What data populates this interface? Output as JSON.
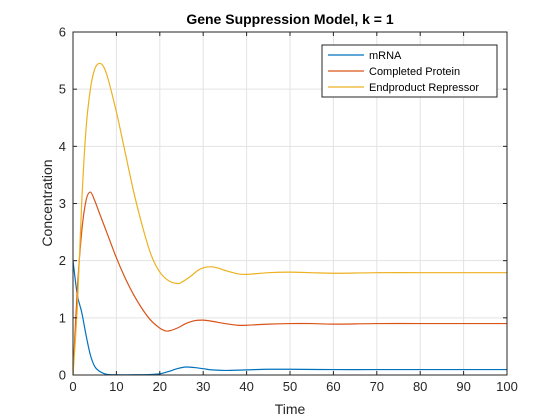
{
  "chart_data": {
    "type": "line",
    "title": "Gene Suppression Model, k = 1",
    "xlabel": "Time",
    "ylabel": "Concentration",
    "xlim": [
      0,
      100
    ],
    "ylim": [
      0,
      6
    ],
    "xticks": [
      "0",
      "10",
      "20",
      "30",
      "40",
      "50",
      "60",
      "70",
      "80",
      "90",
      "100"
    ],
    "yticks": [
      "0",
      "1",
      "2",
      "3",
      "4",
      "5",
      "6"
    ],
    "grid": true,
    "legend_position": "top-right",
    "series": [
      {
        "name": "mRNA",
        "color": "#0072BD",
        "x": [
          0,
          1,
          2,
          3,
          4,
          5,
          6,
          7,
          8,
          10,
          12,
          15,
          18,
          20,
          22,
          24,
          26,
          28,
          30,
          32,
          35,
          40,
          45,
          50,
          60,
          70,
          80,
          90,
          100
        ],
        "y": [
          2.0,
          1.4,
          1.1,
          0.7,
          0.35,
          0.15,
          0.07,
          0.03,
          0.01,
          0.005,
          0.003,
          0.005,
          0.01,
          0.02,
          0.06,
          0.11,
          0.14,
          0.13,
          0.11,
          0.09,
          0.08,
          0.09,
          0.1,
          0.1,
          0.095,
          0.095,
          0.095,
          0.095,
          0.095
        ]
      },
      {
        "name": "Completed Protein",
        "color": "#D95319",
        "x": [
          0,
          1,
          2,
          3,
          4,
          5,
          6,
          8,
          10,
          12,
          14,
          16,
          18,
          20,
          21,
          22,
          24,
          26,
          28,
          30,
          32,
          35,
          38,
          40,
          45,
          50,
          55,
          60,
          70,
          80,
          90,
          100
        ],
        "y": [
          0,
          1.5,
          2.5,
          3.05,
          3.2,
          3.05,
          2.85,
          2.45,
          2.05,
          1.7,
          1.4,
          1.15,
          0.95,
          0.82,
          0.78,
          0.77,
          0.82,
          0.9,
          0.95,
          0.96,
          0.94,
          0.9,
          0.87,
          0.87,
          0.89,
          0.9,
          0.9,
          0.89,
          0.9,
          0.9,
          0.9,
          0.9
        ]
      },
      {
        "name": "Endproduct Repressor",
        "color": "#EDB120",
        "x": [
          0,
          1,
          2,
          3,
          4,
          5,
          6,
          7,
          8,
          10,
          12,
          14,
          16,
          18,
          20,
          22,
          24,
          25,
          27,
          29,
          31,
          33,
          35,
          38,
          40,
          45,
          50,
          55,
          60,
          70,
          80,
          90,
          100
        ],
        "y": [
          0,
          1.2,
          3.0,
          4.3,
          5.0,
          5.35,
          5.45,
          5.4,
          5.2,
          4.6,
          3.9,
          3.2,
          2.6,
          2.1,
          1.8,
          1.65,
          1.6,
          1.62,
          1.72,
          1.84,
          1.89,
          1.88,
          1.83,
          1.77,
          1.76,
          1.79,
          1.8,
          1.79,
          1.78,
          1.79,
          1.79,
          1.79,
          1.79
        ]
      }
    ]
  }
}
